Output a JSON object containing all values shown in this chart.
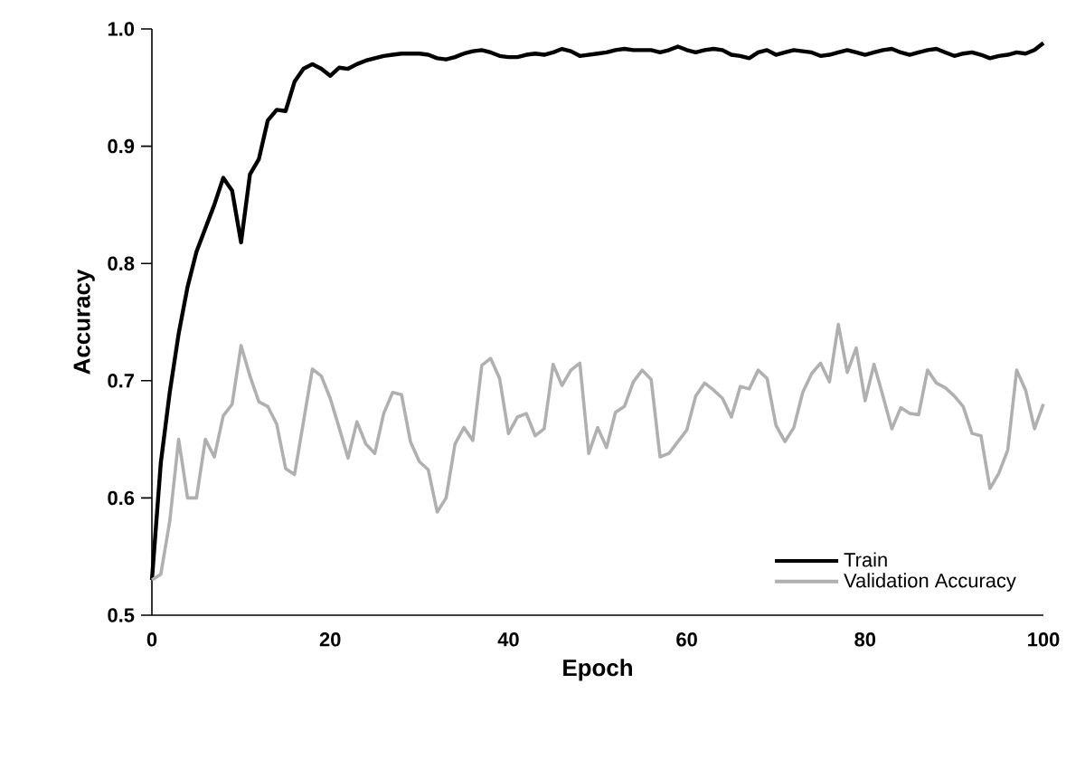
{
  "chart_data": {
    "type": "line",
    "xlabel": "Epoch",
    "ylabel": "Accuracy",
    "x": [
      0,
      1,
      2,
      3,
      4,
      5,
      6,
      7,
      8,
      9,
      10,
      11,
      12,
      13,
      14,
      15,
      16,
      17,
      18,
      19,
      20,
      21,
      22,
      23,
      24,
      25,
      26,
      27,
      28,
      29,
      30,
      31,
      32,
      33,
      34,
      35,
      36,
      37,
      38,
      39,
      40,
      41,
      42,
      43,
      44,
      45,
      46,
      47,
      48,
      49,
      50,
      51,
      52,
      53,
      54,
      55,
      56,
      57,
      58,
      59,
      60,
      61,
      62,
      63,
      64,
      65,
      66,
      67,
      68,
      69,
      70,
      71,
      72,
      73,
      74,
      75,
      76,
      77,
      78,
      79,
      80,
      81,
      82,
      83,
      84,
      85,
      86,
      87,
      88,
      89,
      90,
      91,
      92,
      93,
      94,
      95,
      96,
      97,
      98,
      99,
      100
    ],
    "series": [
      {
        "name": "Train",
        "color": "#000000",
        "values": [
          0.53,
          0.63,
          0.69,
          0.74,
          0.78,
          0.81,
          0.83,
          0.85,
          0.873,
          0.862,
          0.818,
          0.876,
          0.889,
          0.922,
          0.931,
          0.93,
          0.955,
          0.966,
          0.97,
          0.966,
          0.96,
          0.967,
          0.966,
          0.97,
          0.973,
          0.975,
          0.977,
          0.978,
          0.979,
          0.979,
          0.979,
          0.978,
          0.975,
          0.974,
          0.976,
          0.979,
          0.981,
          0.982,
          0.98,
          0.977,
          0.976,
          0.976,
          0.978,
          0.979,
          0.978,
          0.98,
          0.983,
          0.981,
          0.977,
          0.978,
          0.979,
          0.98,
          0.982,
          0.983,
          0.982,
          0.982,
          0.982,
          0.98,
          0.982,
          0.985,
          0.982,
          0.98,
          0.982,
          0.983,
          0.982,
          0.978,
          0.977,
          0.975,
          0.98,
          0.982,
          0.978,
          0.98,
          0.982,
          0.981,
          0.98,
          0.977,
          0.978,
          0.98,
          0.982,
          0.98,
          0.978,
          0.98,
          0.982,
          0.983,
          0.98,
          0.978,
          0.98,
          0.982,
          0.983,
          0.98,
          0.977,
          0.979,
          0.98,
          0.978,
          0.975,
          0.977,
          0.978,
          0.98,
          0.979,
          0.982,
          0.988
        ]
      },
      {
        "name": "Validation Accuracy",
        "color": "#b0b0b0",
        "values": [
          0.53,
          0.535,
          0.58,
          0.65,
          0.6,
          0.6,
          0.65,
          0.635,
          0.67,
          0.68,
          0.73,
          0.704,
          0.682,
          0.678,
          0.663,
          0.625,
          0.62,
          0.665,
          0.71,
          0.704,
          0.685,
          0.66,
          0.634,
          0.665,
          0.646,
          0.638,
          0.672,
          0.69,
          0.688,
          0.648,
          0.631,
          0.624,
          0.588,
          0.6,
          0.646,
          0.66,
          0.649,
          0.713,
          0.719,
          0.702,
          0.655,
          0.669,
          0.672,
          0.653,
          0.659,
          0.714,
          0.696,
          0.709,
          0.715,
          0.638,
          0.66,
          0.643,
          0.673,
          0.678,
          0.699,
          0.709,
          0.701,
          0.635,
          0.638,
          0.648,
          0.658,
          0.687,
          0.698,
          0.692,
          0.685,
          0.669,
          0.695,
          0.693,
          0.709,
          0.702,
          0.662,
          0.648,
          0.66,
          0.69,
          0.706,
          0.715,
          0.699,
          0.748,
          0.707,
          0.728,
          0.683,
          0.714,
          0.687,
          0.659,
          0.677,
          0.672,
          0.671,
          0.709,
          0.698,
          0.694,
          0.687,
          0.678,
          0.655,
          0.653,
          0.608,
          0.621,
          0.641,
          0.709,
          0.692,
          0.659,
          0.68
        ]
      }
    ],
    "xlim": [
      0,
      100
    ],
    "xticks": [
      0,
      20,
      40,
      60,
      80,
      100
    ],
    "ylim": [
      0.5,
      1.0
    ],
    "yticks": [
      {
        "value": 0.5,
        "label": "0.5"
      },
      {
        "value": 0.6,
        "label": "0.6"
      },
      {
        "value": 0.7,
        "label": "0.7"
      },
      {
        "value": 0.8,
        "label": "0.8"
      },
      {
        "value": 0.9,
        "label": "0.9"
      },
      {
        "value": 1.0,
        "label": "1.0"
      }
    ],
    "legend": "bottom right",
    "grid": false,
    "marker": "none",
    "line_style": "solid"
  }
}
